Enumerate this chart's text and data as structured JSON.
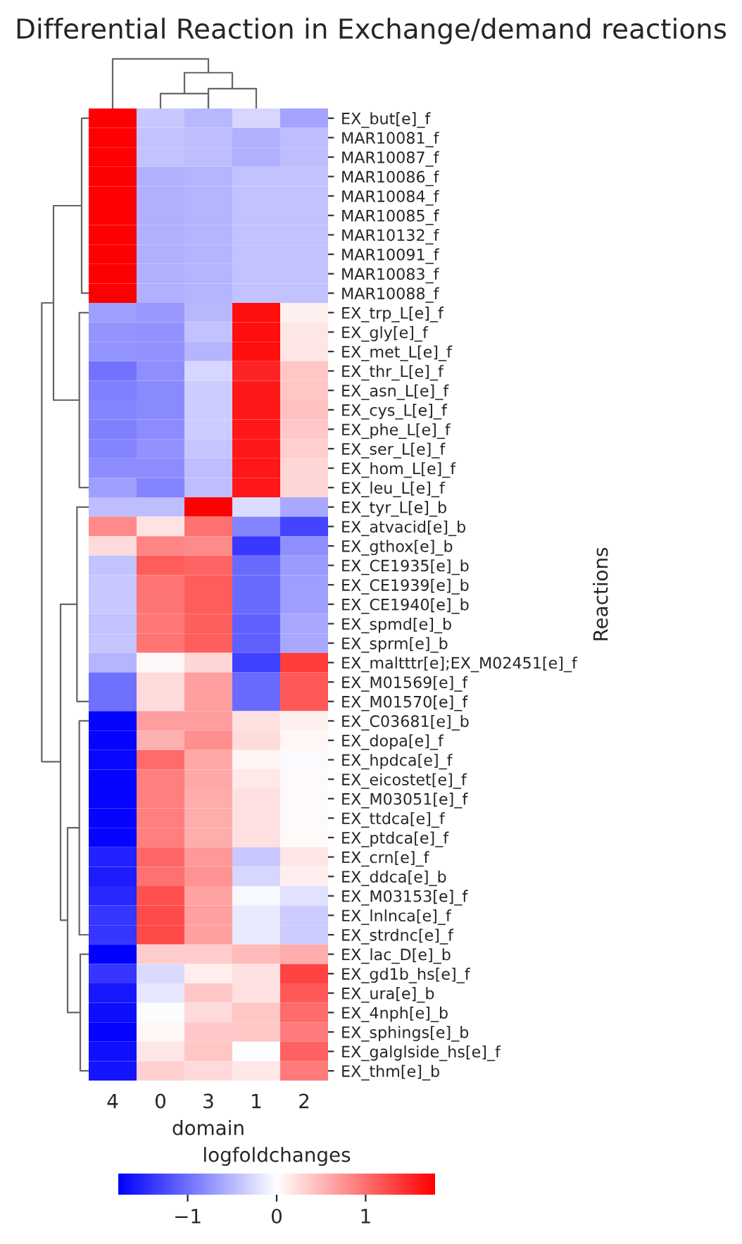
{
  "chart_data": {
    "type": "heatmap",
    "title": "Differential Reaction in Exchange/demand reactions",
    "xlabel": "domain",
    "ylabel": "Reactions",
    "clabel": "logfoldchanges",
    "categories": [
      "4",
      "0",
      "3",
      "1",
      "2"
    ],
    "y_categories": [
      "EX_but[e]_f",
      "MAR10081_f",
      "MAR10087_f",
      "MAR10086_f",
      "MAR10084_f",
      "MAR10085_f",
      "MAR10132_f",
      "MAR10091_f",
      "MAR10083_f",
      "MAR10088_f",
      "EX_trp_L[e]_f",
      "EX_gly[e]_f",
      "EX_met_L[e]_f",
      "EX_thr_L[e]_f",
      "EX_asn_L[e]_f",
      "EX_cys_L[e]_f",
      "EX_phe_L[e]_f",
      "EX_ser_L[e]_f",
      "EX_hom_L[e]_f",
      "EX_leu_L[e]_f",
      "EX_tyr_L[e]_b",
      "EX_atvacid[e]_b",
      "EX_gthox[e]_b",
      "EX_CE1935[e]_b",
      "EX_CE1939[e]_b",
      "EX_CE1940[e]_b",
      "EX_spmd[e]_b",
      "EX_sprm[e]_b",
      "EX_maltttr[e];EX_M02451[e]_f",
      "EX_M01569[e]_f",
      "EX_M01570[e]_f",
      "EX_C03681[e]_b",
      "EX_dopa[e]_f",
      "EX_hpdca[e]_f",
      "EX_eicostet[e]_f",
      "EX_M03051[e]_f",
      "EX_ttdca[e]_f",
      "EX_ptdca[e]_f",
      "EX_crn[e]_f",
      "EX_ddca[e]_b",
      "EX_M03153[e]_f",
      "EX_lnlnca[e]_f",
      "EX_strdnc[e]_f",
      "EX_lac_D[e]_b",
      "EX_gd1b_hs[e]_f",
      "EX_ura[e]_b",
      "EX_4nph[e]_b",
      "EX_sphings[e]_b",
      "EX_galglside_hs[e]_f",
      "EX_thm[e]_b"
    ],
    "cells": [
      [
        1.78,
        -0.38,
        -0.49,
        -0.28,
        -0.63
      ],
      [
        1.78,
        -0.42,
        -0.45,
        -0.55,
        -0.45
      ],
      [
        1.78,
        -0.42,
        -0.45,
        -0.55,
        -0.45
      ],
      [
        1.78,
        -0.55,
        -0.52,
        -0.42,
        -0.42
      ],
      [
        1.78,
        -0.55,
        -0.52,
        -0.42,
        -0.42
      ],
      [
        1.78,
        -0.55,
        -0.52,
        -0.42,
        -0.42
      ],
      [
        1.78,
        -0.55,
        -0.52,
        -0.42,
        -0.42
      ],
      [
        1.78,
        -0.55,
        -0.52,
        -0.42,
        -0.42
      ],
      [
        1.78,
        -0.55,
        -0.52,
        -0.42,
        -0.42
      ],
      [
        1.78,
        -0.55,
        -0.52,
        -0.42,
        -0.42
      ],
      [
        -0.68,
        -0.72,
        -0.5,
        1.68,
        0.1
      ],
      [
        -0.75,
        -0.76,
        -0.42,
        1.68,
        0.18
      ],
      [
        -0.75,
        -0.76,
        -0.52,
        1.68,
        0.18
      ],
      [
        -0.98,
        -0.78,
        -0.28,
        1.52,
        0.4
      ],
      [
        -0.88,
        -0.82,
        -0.36,
        1.6,
        0.4
      ],
      [
        -0.85,
        -0.82,
        -0.36,
        1.6,
        0.44
      ],
      [
        -0.88,
        -0.8,
        -0.36,
        1.6,
        0.38
      ],
      [
        -0.85,
        -0.76,
        -0.4,
        1.6,
        0.34
      ],
      [
        -0.8,
        -0.8,
        -0.45,
        1.62,
        0.28
      ],
      [
        -0.68,
        -0.85,
        -0.45,
        1.62,
        0.28
      ],
      [
        -0.45,
        -0.45,
        1.78,
        -0.25,
        -0.6
      ],
      [
        0.82,
        0.2,
        1.0,
        -0.85,
        -1.3
      ],
      [
        0.26,
        0.85,
        0.82,
        -1.38,
        -0.78
      ],
      [
        -0.42,
        1.14,
        1.08,
        -1.03,
        -0.7
      ],
      [
        -0.38,
        0.96,
        1.14,
        -1.03,
        -0.68
      ],
      [
        -0.38,
        0.96,
        1.14,
        -1.03,
        -0.68
      ],
      [
        -0.42,
        0.94,
        1.12,
        -1.1,
        -0.6
      ],
      [
        -0.4,
        0.96,
        1.12,
        -1.1,
        -0.6
      ],
      [
        -0.52,
        0.05,
        0.28,
        -1.33,
        1.35
      ],
      [
        -1.0,
        0.26,
        0.68,
        -1.03,
        1.16
      ],
      [
        -1.0,
        0.26,
        0.68,
        -1.03,
        1.16
      ],
      [
        -1.75,
        0.68,
        0.68,
        0.22,
        0.1
      ],
      [
        -1.75,
        0.55,
        0.78,
        0.25,
        0.06
      ],
      [
        -1.72,
        1.04,
        0.6,
        0.08,
        -0.04
      ],
      [
        -1.75,
        0.9,
        0.6,
        0.16,
        0.03
      ],
      [
        -1.75,
        0.9,
        0.58,
        0.22,
        0.03
      ],
      [
        -1.75,
        0.9,
        0.58,
        0.22,
        0.03
      ],
      [
        -1.75,
        0.9,
        0.58,
        0.22,
        0.03
      ],
      [
        -1.53,
        1.06,
        0.72,
        -0.38,
        0.18
      ],
      [
        -1.58,
        1.0,
        0.76,
        -0.28,
        0.12
      ],
      [
        -1.5,
        1.22,
        0.64,
        -0.05,
        -0.2
      ],
      [
        -1.4,
        1.26,
        0.66,
        -0.14,
        -0.35
      ],
      [
        -1.4,
        1.26,
        0.66,
        -0.14,
        -0.35
      ],
      [
        -1.78,
        0.35,
        0.35,
        0.48,
        0.58
      ],
      [
        -1.4,
        -0.26,
        0.12,
        0.22,
        1.32
      ],
      [
        -1.6,
        -0.17,
        0.38,
        0.22,
        1.16
      ],
      [
        -1.68,
        -0.02,
        0.26,
        0.4,
        1.04
      ],
      [
        -1.74,
        0.06,
        0.38,
        0.4,
        0.92
      ],
      [
        -1.66,
        0.17,
        0.4,
        0.01,
        1.1
      ],
      [
        -1.64,
        0.32,
        0.26,
        0.16,
        0.92
      ]
    ],
    "clim": [
      -1.78,
      1.78
    ],
    "cticks": [
      -1,
      0,
      1
    ]
  }
}
